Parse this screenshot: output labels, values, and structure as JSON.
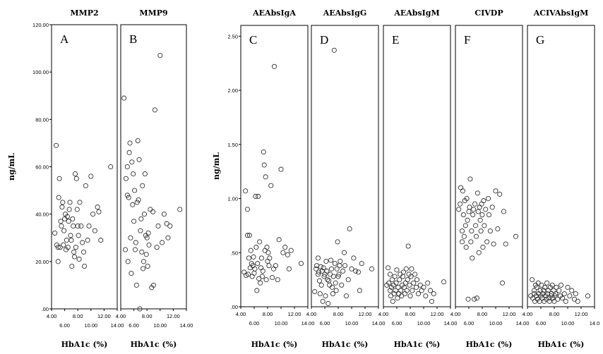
{
  "chart_data": [
    {
      "type": "scatter",
      "title": "MMP2",
      "panel_letter": "A",
      "xlabel": "HbA1c (%)",
      "ylabel": "ng/mL",
      "xlim": [
        4,
        14
      ],
      "ylim": [
        0,
        120
      ],
      "xticks_lower": [
        "4.00",
        "8.00",
        "12.00"
      ],
      "xticks_upper": [
        "6.00",
        "10.00",
        "14.00"
      ],
      "yticks": [
        "120.00",
        "100.00",
        "80.00",
        "60.00",
        "40.00",
        "20.00",
        ".00"
      ],
      "x": [
        4.5,
        4.7,
        4.8,
        5.0,
        5.0,
        5.1,
        5.2,
        5.3,
        5.4,
        5.5,
        5.6,
        5.7,
        5.8,
        5.9,
        6.0,
        6.1,
        6.2,
        6.3,
        6.4,
        6.5,
        6.6,
        6.7,
        6.8,
        6.9,
        7.0,
        7.1,
        7.2,
        7.3,
        7.4,
        7.5,
        7.6,
        7.7,
        7.8,
        7.9,
        8.0,
        8.1,
        8.2,
        8.3,
        8.5,
        8.7,
        8.9,
        9.0,
        9.2,
        9.5,
        9.7,
        10.0,
        10.3,
        10.6,
        11.0,
        11.2,
        11.5,
        13.0
      ],
      "y": [
        32,
        69,
        27,
        26,
        20,
        47,
        55,
        26,
        37,
        35,
        43,
        45,
        27,
        33,
        38,
        40,
        25,
        29,
        39,
        26,
        37,
        42,
        45,
        31,
        29,
        18,
        38,
        35,
        24,
        22,
        57,
        26,
        55,
        42,
        35,
        31,
        21,
        45,
        35,
        28,
        24,
        18,
        52,
        29,
        35,
        56,
        40,
        33,
        43,
        41,
        29,
        60
      ]
    },
    {
      "type": "scatter",
      "title": "MMP9",
      "panel_letter": "B",
      "xlabel": "HbA1c (%)",
      "xlim": [
        4,
        14
      ],
      "ylim": [
        0,
        120
      ],
      "xticks_lower": [
        "4.00",
        "8.00",
        "12.00"
      ],
      "xticks_upper": [
        "6.00",
        "10.00",
        "14.00"
      ],
      "x": [
        4.5,
        4.7,
        4.8,
        5.0,
        5.0,
        5.1,
        5.2,
        5.3,
        5.4,
        5.5,
        5.6,
        5.7,
        5.8,
        5.9,
        6.0,
        6.1,
        6.2,
        6.3,
        6.4,
        6.5,
        6.6,
        6.7,
        6.8,
        6.9,
        7.0,
        7.1,
        7.2,
        7.3,
        7.4,
        7.5,
        7.6,
        7.7,
        7.8,
        7.9,
        8.0,
        8.1,
        8.2,
        8.3,
        8.5,
        8.7,
        8.9,
        9.0,
        9.2,
        9.5,
        9.7,
        10.0,
        10.3,
        10.6,
        11.0,
        11.2,
        11.5,
        13.0
      ],
      "y": [
        89,
        25,
        55,
        48,
        60,
        20,
        47,
        66,
        70,
        30,
        15,
        62,
        44,
        57,
        37,
        50,
        25,
        28,
        10,
        45,
        71,
        46,
        63,
        0,
        33,
        38,
        24,
        52,
        17,
        20,
        40,
        57,
        31,
        23,
        30,
        18,
        32,
        27,
        42,
        9,
        41,
        10,
        84,
        26,
        35,
        107,
        28,
        40,
        36,
        30,
        35,
        42
      ]
    },
    {
      "type": "scatter",
      "title": "AEAbsIgA",
      "panel_letter": "C",
      "xlabel": "HbA1c (%)",
      "ylabel": "ng/mL",
      "xlim": [
        4,
        14
      ],
      "ylim": [
        0,
        2.6
      ],
      "xticks_lower": [
        "4.00",
        "8.00",
        "12.00"
      ],
      "xticks_upper": [
        "6.00",
        "10.00",
        "14.00"
      ],
      "yticks": [
        "2.50",
        "2.00",
        "1.50",
        "1.00",
        ".50",
        ".00"
      ],
      "x": [
        4.5,
        4.7,
        4.8,
        5.0,
        5.0,
        5.1,
        5.2,
        5.3,
        5.4,
        5.5,
        5.6,
        5.7,
        5.8,
        5.9,
        6.0,
        6.1,
        6.2,
        6.3,
        6.4,
        6.5,
        6.6,
        6.7,
        6.8,
        6.9,
        7.0,
        7.1,
        7.2,
        7.3,
        7.4,
        7.5,
        7.6,
        7.7,
        7.8,
        7.9,
        8.0,
        8.1,
        8.2,
        8.3,
        8.5,
        8.7,
        8.9,
        9.0,
        9.2,
        9.5,
        9.7,
        10.0,
        10.3,
        10.6,
        11.0,
        11.2,
        11.5,
        13.0
      ],
      "y": [
        0.32,
        1.07,
        0.29,
        0.9,
        0.66,
        0.3,
        0.45,
        0.66,
        0.36,
        0.52,
        0.4,
        0.28,
        0.38,
        0.46,
        0.31,
        0.35,
        1.02,
        0.55,
        0.15,
        0.4,
        1.02,
        0.26,
        0.6,
        0.22,
        0.36,
        0.45,
        0.28,
        0.33,
        1.43,
        1.31,
        0.52,
        1.2,
        0.25,
        0.55,
        0.42,
        0.5,
        0.38,
        0.45,
        1.12,
        0.27,
        0.35,
        2.22,
        0.38,
        0.25,
        0.62,
        1.27,
        0.5,
        0.55,
        0.48,
        0.35,
        0.52,
        0.4
      ]
    },
    {
      "type": "scatter",
      "title": "AEAbsIgG",
      "panel_letter": "D",
      "xlabel": "HbA1c (%)",
      "xlim": [
        4,
        14
      ],
      "ylim": [
        0,
        2.6
      ],
      "xticks_lower": [
        "4.00",
        "8.00",
        "12.00"
      ],
      "xticks_upper": [
        "6.00",
        "10.00",
        "14.00"
      ],
      "x": [
        4.5,
        4.7,
        4.8,
        5.0,
        5.0,
        5.1,
        5.2,
        5.3,
        5.4,
        5.5,
        5.6,
        5.7,
        5.8,
        5.9,
        6.0,
        6.1,
        6.2,
        6.3,
        6.4,
        6.5,
        6.6,
        6.7,
        6.8,
        6.9,
        7.0,
        7.1,
        7.2,
        7.3,
        7.4,
        7.5,
        7.6,
        7.7,
        7.8,
        7.9,
        8.0,
        8.1,
        8.2,
        8.3,
        8.5,
        8.7,
        8.9,
        9.0,
        9.2,
        9.5,
        9.7,
        10.0,
        10.3,
        10.6,
        11.0,
        11.2,
        11.5,
        13.0
      ],
      "y": [
        0.14,
        0.35,
        0.38,
        0.45,
        0.3,
        0.32,
        0.24,
        0.12,
        0.37,
        0.2,
        0.33,
        0.05,
        0.36,
        0.28,
        0.3,
        0.1,
        0.42,
        0.33,
        0.25,
        0.03,
        0.24,
        0.2,
        0.3,
        0.43,
        0.35,
        0.18,
        0.12,
        0.28,
        2.37,
        0.4,
        0.22,
        0.15,
        0.35,
        0.6,
        0.28,
        0.3,
        0.38,
        0.42,
        0.2,
        0.33,
        0.5,
        0.38,
        0.1,
        0.25,
        0.72,
        0.35,
        0.45,
        0.33,
        0.32,
        0.15,
        0.4,
        0.35
      ]
    },
    {
      "type": "scatter",
      "title": "AEAbsIgM",
      "panel_letter": "E",
      "xlabel": "HbA1c (%)",
      "xlim": [
        4,
        14
      ],
      "ylim": [
        0,
        2.6
      ],
      "xticks_lower": [
        "4.00",
        "8.00",
        "12.00"
      ],
      "xticks_upper": [
        "6.00",
        "10.00",
        "14.00"
      ],
      "x": [
        4.5,
        4.7,
        4.8,
        5.0,
        5.0,
        5.1,
        5.2,
        5.3,
        5.4,
        5.5,
        5.6,
        5.7,
        5.8,
        5.9,
        6.0,
        6.1,
        6.2,
        6.3,
        6.4,
        6.5,
        6.6,
        6.7,
        6.8,
        6.9,
        7.0,
        7.1,
        7.2,
        7.3,
        7.4,
        7.5,
        7.6,
        7.7,
        7.8,
        7.9,
        8.0,
        8.1,
        8.2,
        8.3,
        8.5,
        8.7,
        8.9,
        9.0,
        9.2,
        9.5,
        9.7,
        10.0,
        10.3,
        10.6,
        11.0,
        11.2,
        11.5,
        13.0
      ],
      "y": [
        0.2,
        0.36,
        0.22,
        0.15,
        0.3,
        0.1,
        0.18,
        0.25,
        0.05,
        0.2,
        0.12,
        0.28,
        0.15,
        0.22,
        0.34,
        0.08,
        0.18,
        0.12,
        0.25,
        0.3,
        0.15,
        0.1,
        0.2,
        0.28,
        0.32,
        0.18,
        0.12,
        0.22,
        0.35,
        0.15,
        0.25,
        0.56,
        0.3,
        0.2,
        0.1,
        0.28,
        0.35,
        0.15,
        0.22,
        0.3,
        0.18,
        0.25,
        0.12,
        0.2,
        0.15,
        0.18,
        0.1,
        0.22,
        0.15,
        0.05,
        0.12,
        0.23
      ]
    },
    {
      "type": "scatter",
      "title": "CIVDP",
      "panel_letter": "F",
      "xlabel": "HbA1c (%)",
      "xlim": [
        4,
        14
      ],
      "ylim": [
        0,
        2.6
      ],
      "xticks_lower": [
        "4.00",
        "8.00",
        "12.00"
      ],
      "xticks_upper": [
        "6.00",
        "10.00",
        "14.00"
      ],
      "x": [
        4.5,
        4.7,
        4.8,
        5.0,
        5.0,
        5.1,
        5.2,
        5.3,
        5.4,
        5.5,
        5.6,
        5.7,
        5.8,
        5.9,
        6.0,
        6.1,
        6.2,
        6.3,
        6.4,
        6.5,
        6.6,
        6.7,
        6.8,
        6.9,
        7.0,
        7.1,
        7.2,
        7.3,
        7.4,
        7.5,
        7.6,
        7.7,
        7.8,
        7.9,
        8.0,
        8.1,
        8.2,
        8.3,
        8.5,
        8.7,
        8.9,
        9.0,
        9.2,
        9.5,
        9.7,
        10.0,
        10.3,
        10.6,
        11.0,
        11.2,
        11.5,
        13.0
      ],
      "y": [
        0.9,
        0.95,
        1.1,
        0.7,
        0.6,
        1.07,
        0.85,
        0.65,
        0.98,
        0.75,
        0.55,
        1.0,
        0.8,
        0.07,
        0.88,
        0.92,
        1.18,
        0.6,
        0.7,
        0.45,
        0.85,
        0.9,
        0.07,
        0.95,
        0.75,
        0.65,
        0.08,
        1.05,
        0.88,
        0.5,
        0.92,
        0.8,
        0.7,
        0.95,
        0.85,
        0.55,
        0.98,
        0.75,
        0.9,
        0.6,
        1.0,
        0.85,
        0.7,
        0.92,
        0.58,
        1.07,
        0.72,
        1.04,
        0.22,
        0.88,
        0.58,
        0.65
      ]
    },
    {
      "type": "scatter",
      "title": "ACIVAbsIgM",
      "panel_letter": "G",
      "xlabel": "HbA1c (%)",
      "xlim": [
        4,
        14
      ],
      "ylim": [
        0,
        2.6
      ],
      "xticks_lower": [
        "4.00",
        "8.00",
        "12.00"
      ],
      "xticks_upper": [
        "6.00",
        "10.00",
        "14.0"
      ],
      "x": [
        4.5,
        4.7,
        4.8,
        5.0,
        5.0,
        5.1,
        5.2,
        5.3,
        5.4,
        5.5,
        5.6,
        5.7,
        5.8,
        5.9,
        6.0,
        6.1,
        6.2,
        6.3,
        6.4,
        6.5,
        6.6,
        6.7,
        6.8,
        6.9,
        7.0,
        7.1,
        7.2,
        7.3,
        7.4,
        7.5,
        7.6,
        7.7,
        7.8,
        7.9,
        8.0,
        8.1,
        8.2,
        8.3,
        8.5,
        8.7,
        8.9,
        9.0,
        9.2,
        9.5,
        9.7,
        10.0,
        10.3,
        10.6,
        11.0,
        11.2,
        11.5,
        13.0
      ],
      "y": [
        0.1,
        0.25,
        0.08,
        0.15,
        0.12,
        0.05,
        0.2,
        0.1,
        0.18,
        0.07,
        0.22,
        0.12,
        0.05,
        0.15,
        0.1,
        0.2,
        0.08,
        0.12,
        0.15,
        0.05,
        0.18,
        0.1,
        0.07,
        0.22,
        0.12,
        0.15,
        0.08,
        0.05,
        0.18,
        0.1,
        0.12,
        0.2,
        0.08,
        0.15,
        0.05,
        0.1,
        0.12,
        0.18,
        0.07,
        0.15,
        0.1,
        0.2,
        0.08,
        0.12,
        0.05,
        0.18,
        0.1,
        0.15,
        0.07,
        0.12,
        0.05,
        0.1
      ]
    }
  ]
}
